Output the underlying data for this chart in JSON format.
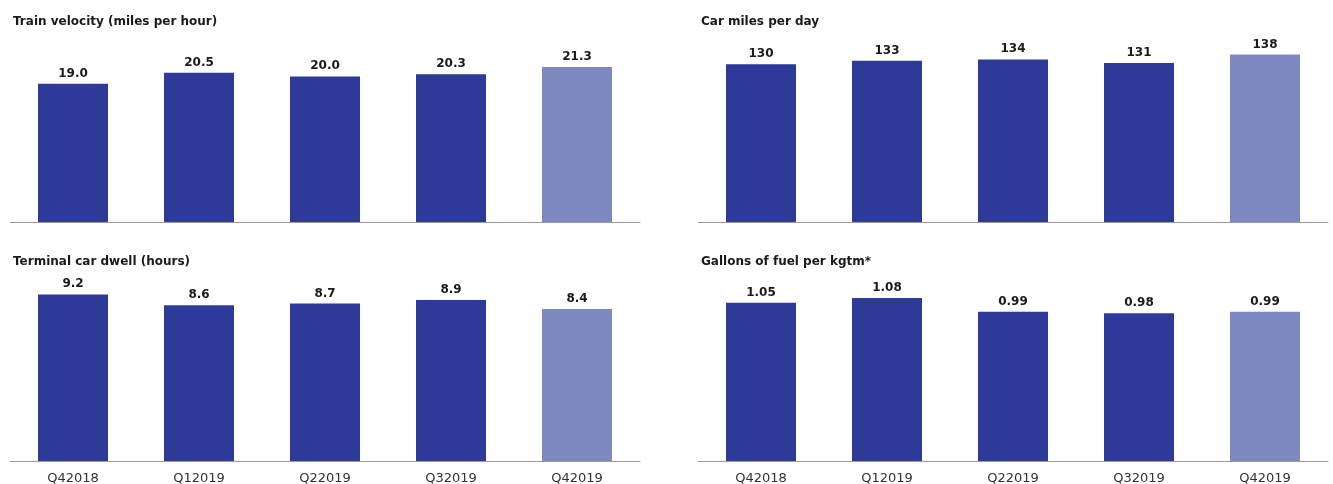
{
  "chart_data": [
    {
      "type": "bar",
      "title": "Train velocity (miles per hour)",
      "categories": [
        null,
        null,
        null,
        null,
        null
      ],
      "values": [
        19.0,
        20.5,
        20.0,
        20.3,
        21.3
      ],
      "colors": [
        "#2e3a97",
        "#2e3a97",
        "#2e3a97",
        "#2e3a97",
        "#7f89c1"
      ],
      "value_labels": [
        "19.0",
        "20.5",
        "20.0",
        "20.3",
        "21.3"
      ],
      "tick_labels": false,
      "grid": false
    },
    {
      "type": "bar",
      "title": "Car miles per day",
      "categories": [
        null,
        null,
        null,
        null,
        null
      ],
      "values": [
        130,
        133,
        134,
        131,
        138
      ],
      "colors": [
        "#2e3a97",
        "#2e3a97",
        "#2e3a97",
        "#2e3a97",
        "#7f89c1"
      ],
      "data_labels": true,
      "tick_labels": false,
      "grid": false
    },
    {
      "type": "bar",
      "title": "Terminal car dwell (hours)",
      "categories": [
        "Q42018",
        "Q12019",
        "Q22019",
        "Q32019",
        "Q42019"
      ],
      "values": [
        9.2,
        8.6,
        8.7,
        8.9,
        8.4
      ],
      "colors": [
        "#2e3a97",
        "#2e3a97",
        "#2e3a97",
        "#2e3a97",
        "#7f89c1"
      ],
      "data_labels": true,
      "tick_labels": "x",
      "grid": false
    },
    {
      "type": "bar",
      "title": "Gallons of fuel per kgtm*",
      "categories": [
        "Q42018",
        "Q12019",
        "Q22019",
        "Q32019",
        "Q42019"
      ],
      "values": [
        1.05,
        1.08,
        0.99,
        0.98,
        0.99
      ],
      "colors": [
        "#2e3a97",
        "#2e3a97",
        "#2e3a97",
        "#2e3a97",
        "#7f89c1"
      ],
      "data_labels": true,
      "tick_labels": "x",
      "grid": false
    }
  ]
}
